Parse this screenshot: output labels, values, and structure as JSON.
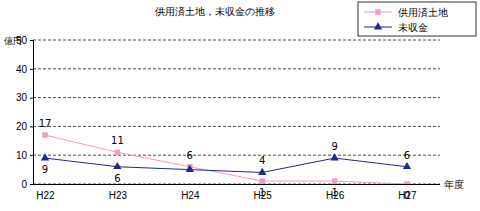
{
  "chart_data": {
    "type": "line",
    "title": "供用済土地，未収金の推移",
    "y_label": "億円",
    "x_label": "年度",
    "categories": [
      "H22",
      "H23",
      "H24",
      "H25",
      "H26",
      "H27"
    ],
    "series": [
      {
        "name": "供用済土地",
        "color": "#f29ac6",
        "marker": "square",
        "values": [
          17,
          11,
          6,
          1,
          1,
          0
        ]
      },
      {
        "name": "未収金",
        "color": "#1f2a8a",
        "marker": "triangle",
        "values": [
          9,
          6,
          5,
          4,
          9,
          6
        ],
        "value_labels": [
          "9",
          "6",
          null,
          "4",
          "9",
          "6"
        ]
      }
    ],
    "ylim": [
      0,
      50
    ],
    "yticks": [
      0,
      10,
      20,
      30,
      40,
      50
    ],
    "grid": true,
    "legend": "top-right",
    "data_labels": true
  }
}
